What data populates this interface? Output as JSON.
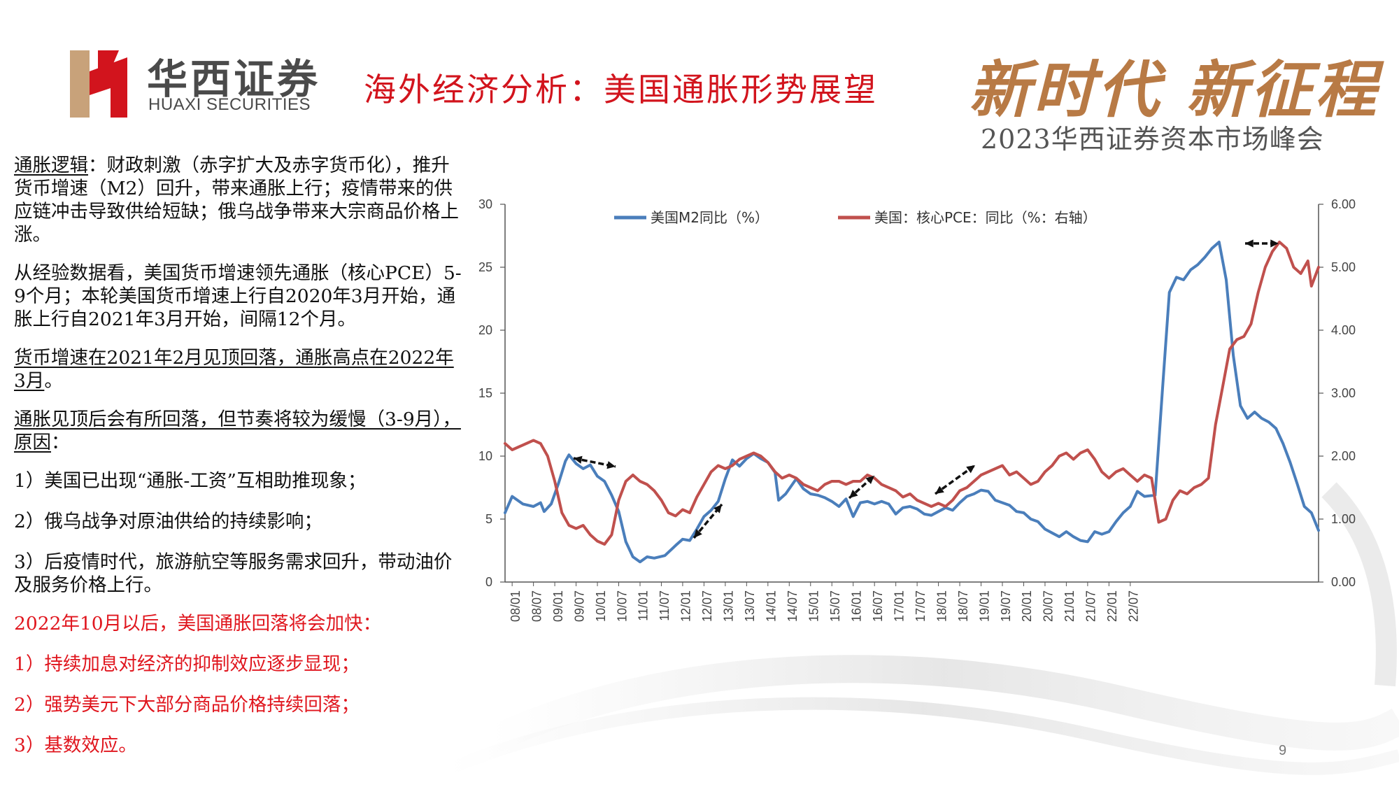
{
  "header": {
    "logo_cn": "华西证券",
    "logo_en": "HUAXI SECURITIES",
    "title": "海外经济分析：美国通胀形势展望",
    "slogan": "新时代 新征程",
    "summit": "2023华西证券资本市场峰会"
  },
  "left_text": {
    "p1_lead": "通胀逻辑",
    "p1_rest": "：财政刺激（赤字扩大及赤字货币化），推升货币增速（M2）回升，带来通胀上行；疫情带来的供应链冲击导致供给短缺；俄乌战争带来大宗商品价格上涨。",
    "p2": "从经验数据看，美国货币增速领先通胀（核心PCE）5-9个月；本轮美国货币增速上行自2020年3月开始，通胀上行自2021年3月开始，间隔12个月。",
    "p3_u": "货币增速在2021年2月见顶回落，通胀高点在2022年3月",
    "p3_end": "。",
    "p4_u": "通胀见顶后会有所回落，但节奏将较为缓慢（3-9月），原因",
    "p4_end": "：",
    "p5": "1）美国已出现“通胀-工资”互相助推现象；",
    "p6": "2）俄乌战争对原油供给的持续影响；",
    "p7": "3）后疫情时代，旅游航空等服务需求回升，带动油价及服务价格上行。",
    "r1": "2022年10月以后，美国通胀回落将会加快：",
    "r2": "1）持续加息对经济的抑制效应逐步显现；",
    "r3": "2）强势美元下大部分商品价格持续回落；",
    "r4": "3）基数效应。"
  },
  "page_number": "9",
  "colors": {
    "m2": "#4a7ebb",
    "pce": "#c0504d",
    "title_red": "#d2141d",
    "gold": "#b87a45"
  },
  "chart_data": {
    "type": "line",
    "x_tick_labels": [
      "08/01",
      "08/07",
      "09/01",
      "09/07",
      "10/01",
      "10/07",
      "11/01",
      "11/07",
      "12/01",
      "12/07",
      "13/01",
      "13/07",
      "14/01",
      "14/07",
      "15/01",
      "15/07",
      "16/01",
      "16/07",
      "17/01",
      "17/07",
      "18/01",
      "18/07",
      "19/01",
      "19/07",
      "20/01",
      "20/07",
      "21/01",
      "21/07",
      "22/01",
      "22/07"
    ],
    "y_left": {
      "ticks": [
        "0",
        "5",
        "10",
        "15",
        "20",
        "25",
        "30"
      ],
      "range": [
        0,
        30
      ]
    },
    "y_right": {
      "ticks": [
        "0.00",
        "1.00",
        "2.00",
        "3.00",
        "4.00",
        "5.00",
        "6.00"
      ],
      "range": [
        0,
        6
      ]
    },
    "series": [
      {
        "name": "美国M2同比（%）",
        "axis": "left",
        "points": [
          [
            0,
            5.5
          ],
          [
            2,
            6.8
          ],
          [
            5,
            6.2
          ],
          [
            8,
            6.0
          ],
          [
            10,
            6.3
          ],
          [
            11,
            5.6
          ],
          [
            13,
            6.2
          ],
          [
            15,
            7.8
          ],
          [
            17,
            9.6
          ],
          [
            18,
            10.1
          ],
          [
            20,
            9.4
          ],
          [
            22,
            9.0
          ],
          [
            24,
            9.3
          ],
          [
            26,
            8.4
          ],
          [
            28,
            8.0
          ],
          [
            30,
            6.9
          ],
          [
            32,
            5.6
          ],
          [
            34,
            3.2
          ],
          [
            36,
            2.0
          ],
          [
            38,
            1.6
          ],
          [
            40,
            2.0
          ],
          [
            42,
            1.9
          ],
          [
            45,
            2.1
          ],
          [
            48,
            2.9
          ],
          [
            50,
            3.4
          ],
          [
            52,
            3.3
          ],
          [
            54,
            4.2
          ],
          [
            56,
            5.2
          ],
          [
            58,
            5.7
          ],
          [
            60,
            6.4
          ],
          [
            62,
            8.2
          ],
          [
            64,
            9.7
          ],
          [
            66,
            9.2
          ],
          [
            68,
            9.8
          ],
          [
            70,
            10.2
          ],
          [
            72,
            9.8
          ],
          [
            74,
            9.5
          ],
          [
            76,
            8.7
          ],
          [
            77,
            6.5
          ],
          [
            79,
            7.0
          ],
          [
            82,
            8.2
          ],
          [
            84,
            7.4
          ],
          [
            86,
            7.0
          ],
          [
            88,
            6.9
          ],
          [
            90,
            6.7
          ],
          [
            92,
            6.4
          ],
          [
            94,
            6.0
          ],
          [
            96,
            6.6
          ],
          [
            98,
            5.2
          ],
          [
            100,
            6.3
          ],
          [
            102,
            6.4
          ],
          [
            104,
            6.2
          ],
          [
            106,
            6.4
          ],
          [
            108,
            6.2
          ],
          [
            110,
            5.4
          ],
          [
            112,
            5.9
          ],
          [
            114,
            6.0
          ],
          [
            116,
            5.8
          ],
          [
            118,
            5.4
          ],
          [
            120,
            5.3
          ],
          [
            122,
            5.6
          ],
          [
            124,
            5.9
          ],
          [
            126,
            5.7
          ],
          [
            128,
            6.3
          ],
          [
            130,
            6.8
          ],
          [
            132,
            7.0
          ],
          [
            134,
            7.3
          ],
          [
            136,
            7.2
          ],
          [
            138,
            6.5
          ],
          [
            140,
            6.3
          ],
          [
            142,
            6.1
          ],
          [
            144,
            5.6
          ],
          [
            146,
            5.5
          ],
          [
            148,
            5.0
          ],
          [
            150,
            4.8
          ],
          [
            152,
            4.2
          ],
          [
            154,
            3.9
          ],
          [
            156,
            3.6
          ],
          [
            158,
            4.0
          ],
          [
            160,
            3.6
          ],
          [
            162,
            3.3
          ],
          [
            164,
            3.2
          ],
          [
            166,
            4.0
          ],
          [
            168,
            3.8
          ],
          [
            170,
            4.0
          ],
          [
            172,
            4.8
          ],
          [
            174,
            5.5
          ],
          [
            176,
            6.0
          ],
          [
            178,
            7.2
          ],
          [
            180,
            6.8
          ],
          [
            183,
            6.9
          ],
          [
            185,
            15.0
          ],
          [
            187,
            23.0
          ],
          [
            189,
            24.2
          ],
          [
            191,
            24.0
          ],
          [
            193,
            24.8
          ],
          [
            195,
            25.2
          ],
          [
            197,
            25.8
          ],
          [
            199,
            26.5
          ],
          [
            201,
            27.0
          ],
          [
            203,
            24.0
          ],
          [
            205,
            18.0
          ],
          [
            207,
            14.0
          ],
          [
            209,
            13.0
          ],
          [
            211,
            13.5
          ],
          [
            213,
            13.0
          ],
          [
            215,
            12.7
          ],
          [
            217,
            12.2
          ],
          [
            219,
            11.0
          ],
          [
            221,
            9.5
          ],
          [
            223,
            7.8
          ],
          [
            225,
            6.0
          ],
          [
            227,
            5.5
          ],
          [
            229,
            4.1
          ]
        ]
      },
      {
        "name": "美国：核心PCE：同比（%：右轴）",
        "axis": "right",
        "points": [
          [
            0,
            2.2
          ],
          [
            2,
            2.1
          ],
          [
            4,
            2.15
          ],
          [
            6,
            2.2
          ],
          [
            8,
            2.25
          ],
          [
            10,
            2.2
          ],
          [
            12,
            2.0
          ],
          [
            14,
            1.6
          ],
          [
            16,
            1.1
          ],
          [
            18,
            0.9
          ],
          [
            20,
            0.85
          ],
          [
            22,
            0.9
          ],
          [
            24,
            0.75
          ],
          [
            26,
            0.65
          ],
          [
            28,
            0.6
          ],
          [
            30,
            0.75
          ],
          [
            32,
            1.3
          ],
          [
            34,
            1.6
          ],
          [
            36,
            1.7
          ],
          [
            38,
            1.6
          ],
          [
            40,
            1.55
          ],
          [
            42,
            1.45
          ],
          [
            44,
            1.3
          ],
          [
            46,
            1.1
          ],
          [
            48,
            1.05
          ],
          [
            50,
            1.15
          ],
          [
            52,
            1.1
          ],
          [
            54,
            1.35
          ],
          [
            56,
            1.55
          ],
          [
            58,
            1.75
          ],
          [
            60,
            1.85
          ],
          [
            62,
            1.8
          ],
          [
            64,
            1.85
          ],
          [
            66,
            1.95
          ],
          [
            68,
            2.0
          ],
          [
            70,
            2.05
          ],
          [
            72,
            2.0
          ],
          [
            74,
            1.9
          ],
          [
            76,
            1.75
          ],
          [
            78,
            1.65
          ],
          [
            80,
            1.7
          ],
          [
            82,
            1.65
          ],
          [
            84,
            1.55
          ],
          [
            86,
            1.5
          ],
          [
            88,
            1.45
          ],
          [
            90,
            1.55
          ],
          [
            92,
            1.6
          ],
          [
            94,
            1.6
          ],
          [
            96,
            1.55
          ],
          [
            98,
            1.6
          ],
          [
            100,
            1.6
          ],
          [
            102,
            1.7
          ],
          [
            104,
            1.65
          ],
          [
            106,
            1.55
          ],
          [
            108,
            1.5
          ],
          [
            110,
            1.45
          ],
          [
            112,
            1.35
          ],
          [
            114,
            1.4
          ],
          [
            116,
            1.3
          ],
          [
            118,
            1.25
          ],
          [
            120,
            1.2
          ],
          [
            122,
            1.25
          ],
          [
            124,
            1.2
          ],
          [
            126,
            1.3
          ],
          [
            128,
            1.45
          ],
          [
            130,
            1.5
          ],
          [
            132,
            1.6
          ],
          [
            134,
            1.7
          ],
          [
            136,
            1.75
          ],
          [
            138,
            1.8
          ],
          [
            140,
            1.85
          ],
          [
            142,
            1.7
          ],
          [
            144,
            1.75
          ],
          [
            146,
            1.65
          ],
          [
            148,
            1.55
          ],
          [
            150,
            1.6
          ],
          [
            152,
            1.75
          ],
          [
            154,
            1.85
          ],
          [
            156,
            2.0
          ],
          [
            158,
            2.05
          ],
          [
            160,
            1.95
          ],
          [
            162,
            2.05
          ],
          [
            164,
            2.1
          ],
          [
            166,
            1.95
          ],
          [
            168,
            1.75
          ],
          [
            170,
            1.65
          ],
          [
            172,
            1.75
          ],
          [
            174,
            1.8
          ],
          [
            176,
            1.7
          ],
          [
            178,
            1.6
          ],
          [
            180,
            1.7
          ],
          [
            182,
            1.65
          ],
          [
            184,
            0.95
          ],
          [
            186,
            1.0
          ],
          [
            188,
            1.3
          ],
          [
            190,
            1.45
          ],
          [
            192,
            1.4
          ],
          [
            194,
            1.5
          ],
          [
            196,
            1.55
          ],
          [
            198,
            1.65
          ],
          [
            200,
            2.5
          ],
          [
            202,
            3.1
          ],
          [
            204,
            3.7
          ],
          [
            206,
            3.85
          ],
          [
            208,
            3.9
          ],
          [
            210,
            4.1
          ],
          [
            212,
            4.6
          ],
          [
            214,
            5.0
          ],
          [
            216,
            5.25
          ],
          [
            218,
            5.4
          ],
          [
            220,
            5.3
          ],
          [
            222,
            5.0
          ],
          [
            224,
            4.9
          ],
          [
            226,
            5.1
          ],
          [
            227,
            4.7
          ],
          [
            229,
            5.0
          ]
        ]
      }
    ],
    "x_count": 230,
    "grid": false,
    "legend": "top",
    "annotations": "double-headed arrows indicating lead/lag between M2 and core PCE"
  }
}
